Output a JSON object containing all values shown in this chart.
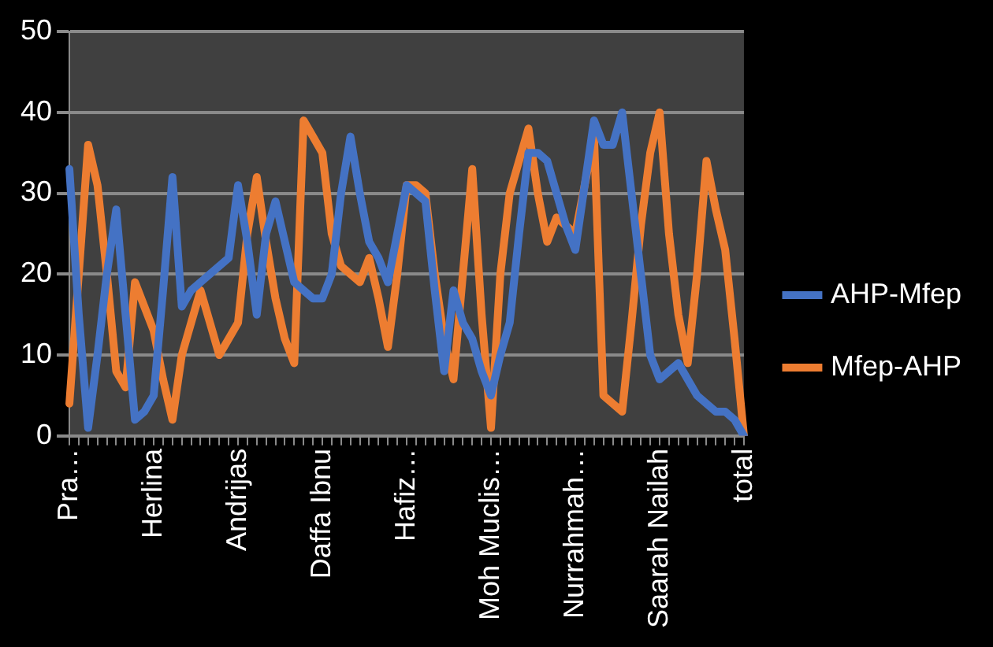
{
  "chart_data": {
    "type": "line",
    "categories": [
      "Pra…",
      null,
      null,
      null,
      null,
      null,
      null,
      null,
      null,
      "Herlina",
      null,
      null,
      null,
      null,
      null,
      null,
      null,
      null,
      "Andrijas",
      null,
      null,
      null,
      null,
      null,
      null,
      null,
      null,
      "Daffa Ibnu",
      null,
      null,
      null,
      null,
      null,
      null,
      null,
      null,
      "Hafiz…",
      null,
      null,
      null,
      null,
      null,
      null,
      null,
      null,
      "Moh Muclis…",
      null,
      null,
      null,
      null,
      null,
      null,
      null,
      null,
      "Nurrahmah…",
      null,
      null,
      null,
      null,
      null,
      null,
      null,
      null,
      "Saarah Nailah",
      null,
      null,
      null,
      null,
      null,
      null,
      null,
      null,
      "total"
    ],
    "series": [
      {
        "name": "AHP-Mfep",
        "color": "#4472c4",
        "values": [
          33,
          15,
          1,
          10,
          20,
          28,
          15,
          2,
          3,
          5,
          18,
          32,
          16,
          18,
          19,
          20,
          21,
          22,
          31,
          24,
          15,
          25,
          29,
          24,
          19,
          18,
          17,
          17,
          20,
          30,
          37,
          30,
          24,
          22,
          19,
          25,
          31,
          30,
          29,
          18,
          8,
          18,
          14,
          12,
          8,
          5,
          10,
          14,
          25,
          35,
          35,
          34,
          30,
          26,
          23,
          31,
          39,
          36,
          36,
          40,
          30,
          20,
          10,
          7,
          8,
          9,
          7,
          5,
          4,
          3,
          3,
          2,
          0
        ]
      },
      {
        "name": "Mfep-AHP",
        "color": "#ed7d31",
        "values": [
          4,
          20,
          36,
          31,
          20,
          8,
          6,
          19,
          16,
          13,
          7,
          2,
          10,
          14,
          18,
          14,
          10,
          12,
          14,
          25,
          32,
          24,
          17,
          12,
          9,
          39,
          37,
          35,
          25,
          21,
          20,
          19,
          22,
          17,
          11,
          20,
          31,
          31,
          30,
          20,
          12,
          7,
          20,
          33,
          15,
          1,
          20,
          30,
          34,
          38,
          30,
          24,
          27,
          26,
          25,
          31,
          37,
          5,
          4,
          3,
          14,
          26,
          35,
          40,
          25,
          15,
          9,
          20,
          34,
          28,
          23,
          12,
          0
        ]
      }
    ],
    "ylim": [
      0,
      50
    ],
    "yticks": [
      0,
      10,
      20,
      30,
      40,
      50
    ],
    "grid": "y",
    "legend": "right",
    "marker": "none",
    "line_style": "solid"
  }
}
